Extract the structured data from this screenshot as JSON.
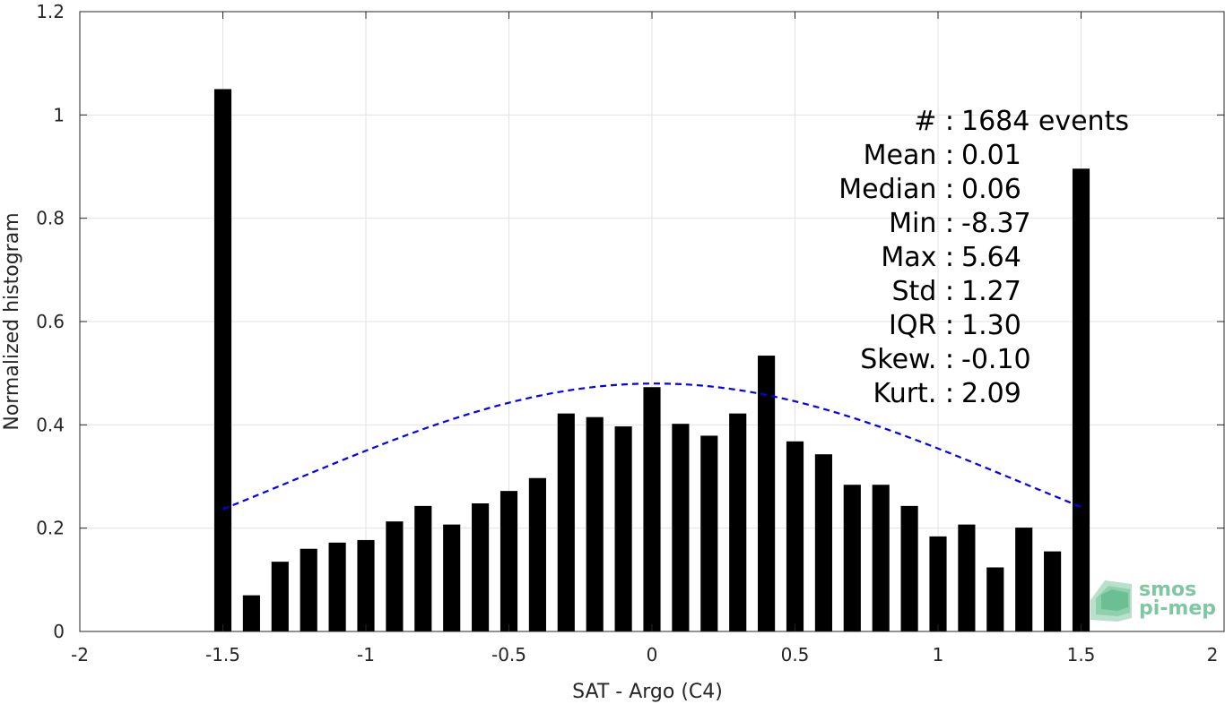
{
  "chart_data": {
    "type": "bar",
    "xlabel": "SAT - Argo (C4)",
    "ylabel": "Normalized histogram",
    "xlim": [
      -2,
      2
    ],
    "ylim": [
      0,
      1.2
    ],
    "xticks": [
      -2,
      -1.5,
      -1,
      -0.5,
      0,
      0.5,
      1,
      1.5,
      2
    ],
    "xtick_labels": [
      "-2",
      "-1.5",
      "-1",
      "-0.5",
      "0",
      "0.5",
      "1",
      "1.5",
      "2"
    ],
    "yticks": [
      0,
      0.2,
      0.4,
      0.6,
      0.8,
      1,
      1.2
    ],
    "ytick_labels": [
      "0",
      "0.2",
      "0.4",
      "0.6",
      "0.8",
      "1",
      "1.2"
    ],
    "grid": true,
    "bar_width": 0.06,
    "bars": {
      "x": [
        -1.5,
        -1.4,
        -1.3,
        -1.2,
        -1.1,
        -1.0,
        -0.9,
        -0.8,
        -0.7,
        -0.6,
        -0.5,
        -0.4,
        -0.3,
        -0.2,
        -0.1,
        0.0,
        0.1,
        0.2,
        0.3,
        0.4,
        0.5,
        0.6,
        0.7,
        0.8,
        0.9,
        1.0,
        1.1,
        1.2,
        1.3,
        1.4,
        1.5
      ],
      "values": [
        1.05,
        0.07,
        0.135,
        0.16,
        0.172,
        0.177,
        0.213,
        0.243,
        0.207,
        0.248,
        0.272,
        0.297,
        0.422,
        0.415,
        0.397,
        0.473,
        0.402,
        0.379,
        0.422,
        0.534,
        0.368,
        0.343,
        0.284,
        0.284,
        0.243,
        0.184,
        0.207,
        0.124,
        0.201,
        0.155,
        0.896
      ],
      "color": "#000000"
    },
    "fit_curve": {
      "style": "dashed",
      "color": "#0000ff",
      "mean": 0.01,
      "std": 1.27,
      "peak": 0.48,
      "x_range": [
        -1.5,
        1.5
      ]
    },
    "stats": [
      {
        "label": "#  :",
        "value": "1684 events"
      },
      {
        "label": "Mean :",
        "value": "0.01"
      },
      {
        "label": "Median :",
        "value": "0.06"
      },
      {
        "label": "Min :",
        "value": "-8.37"
      },
      {
        "label": "Max :",
        "value": "5.64"
      },
      {
        "label": "Std :",
        "value": "1.27"
      },
      {
        "label": "IQR :",
        "value": "1.30"
      },
      {
        "label": "Skew. :",
        "value": "-0.10"
      },
      {
        "label": "Kurt. :",
        "value": "2.09"
      }
    ]
  },
  "logo": {
    "line1": "smos",
    "line2": "pi-mep"
  }
}
